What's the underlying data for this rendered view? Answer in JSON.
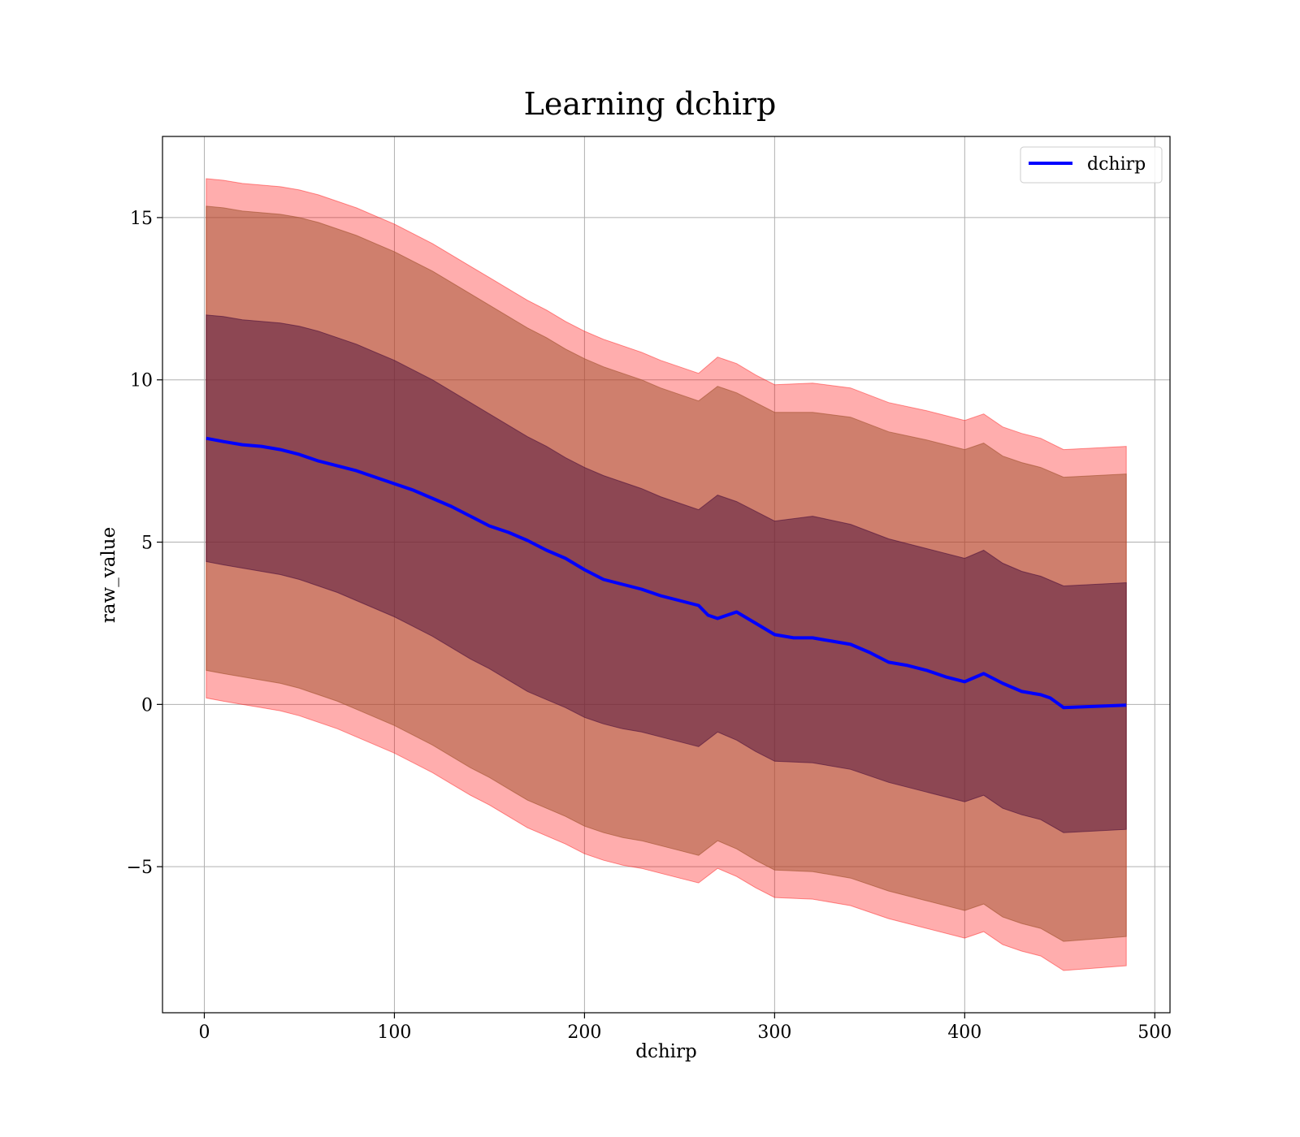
{
  "chart_data": {
    "type": "line",
    "title": "Learning dchirp",
    "xlabel": "dchirp",
    "ylabel": "raw_value",
    "xlim": [
      -22,
      508
    ],
    "ylim": [
      -9.5,
      17.5
    ],
    "xticks": [
      0,
      100,
      200,
      300,
      400,
      500
    ],
    "xtick_labels": [
      "0",
      "100",
      "200",
      "300",
      "400",
      "500"
    ],
    "yticks": [
      -5,
      0,
      5,
      10,
      15
    ],
    "ytick_labels": [
      "−5",
      "0",
      "5",
      "10",
      "15"
    ],
    "grid": true,
    "legend_position": "top-right",
    "colors": {
      "line": "#0000ff",
      "band_outer": "#ff0000",
      "band_middle": "#a0522d",
      "band_inner": "#4b0f3a",
      "grid": "#b0b0b0"
    },
    "series": [
      {
        "name": "dchirp",
        "x": [
          1,
          10,
          20,
          30,
          40,
          50,
          60,
          70,
          80,
          90,
          100,
          110,
          120,
          130,
          140,
          150,
          160,
          170,
          180,
          190,
          200,
          210,
          220,
          230,
          240,
          250,
          260,
          265,
          270,
          280,
          290,
          300,
          310,
          320,
          330,
          340,
          350,
          360,
          370,
          380,
          390,
          400,
          410,
          420,
          430,
          440,
          445,
          452,
          485
        ],
        "values": [
          8.2,
          8.1,
          8.0,
          7.95,
          7.85,
          7.7,
          7.5,
          7.35,
          7.2,
          7.0,
          6.8,
          6.6,
          6.35,
          6.1,
          5.8,
          5.5,
          5.3,
          5.05,
          4.75,
          4.5,
          4.15,
          3.85,
          3.7,
          3.55,
          3.35,
          3.2,
          3.05,
          2.75,
          2.65,
          2.85,
          2.5,
          2.15,
          2.05,
          2.05,
          1.95,
          1.85,
          1.6,
          1.3,
          1.2,
          1.05,
          0.85,
          0.7,
          0.95,
          0.65,
          0.4,
          0.3,
          0.2,
          -0.1,
          -0.02
        ]
      }
    ],
    "bands": [
      {
        "x": [
          1,
          10,
          20,
          30,
          40,
          50,
          60,
          70,
          80,
          90,
          100,
          110,
          120,
          130,
          140,
          150,
          160,
          170,
          180,
          190,
          200,
          210,
          220,
          230,
          240,
          250,
          260,
          270,
          280,
          290,
          300,
          320,
          340,
          360,
          380,
          400,
          410,
          420,
          430,
          440,
          452,
          485
        ],
        "upper": [
          16.2,
          16.15,
          16.05,
          16.0,
          15.95,
          15.85,
          15.7,
          15.5,
          15.3,
          15.05,
          14.8,
          14.5,
          14.2,
          13.85,
          13.5,
          13.15,
          12.8,
          12.45,
          12.15,
          11.8,
          11.5,
          11.25,
          11.05,
          10.85,
          10.6,
          10.4,
          10.2,
          10.7,
          10.5,
          10.15,
          9.85,
          9.9,
          9.75,
          9.3,
          9.05,
          8.75,
          8.95,
          8.55,
          8.35,
          8.2,
          7.85,
          7.95
        ],
        "lower": [
          0.2,
          0.1,
          0.0,
          -0.1,
          -0.2,
          -0.35,
          -0.55,
          -0.75,
          -1.0,
          -1.25,
          -1.5,
          -1.8,
          -2.1,
          -2.45,
          -2.8,
          -3.1,
          -3.45,
          -3.8,
          -4.05,
          -4.3,
          -4.6,
          -4.8,
          -4.95,
          -5.05,
          -5.2,
          -5.35,
          -5.5,
          -5.05,
          -5.3,
          -5.65,
          -5.95,
          -6.0,
          -6.2,
          -6.6,
          -6.9,
          -7.2,
          -7.0,
          -7.4,
          -7.6,
          -7.75,
          -8.2,
          -8.05
        ],
        "color_key": "band_outer",
        "opacity": 0.32
      },
      {
        "x": [
          1,
          10,
          20,
          30,
          40,
          50,
          60,
          70,
          80,
          90,
          100,
          110,
          120,
          130,
          140,
          150,
          160,
          170,
          180,
          190,
          200,
          210,
          220,
          230,
          240,
          250,
          260,
          270,
          280,
          290,
          300,
          320,
          340,
          360,
          380,
          400,
          410,
          420,
          430,
          440,
          452,
          485
        ],
        "upper": [
          15.35,
          15.3,
          15.2,
          15.15,
          15.1,
          15.0,
          14.85,
          14.65,
          14.45,
          14.2,
          13.95,
          13.65,
          13.35,
          13.0,
          12.65,
          12.3,
          11.95,
          11.6,
          11.3,
          10.95,
          10.65,
          10.4,
          10.2,
          10.0,
          9.75,
          9.55,
          9.35,
          9.8,
          9.6,
          9.3,
          9.0,
          9.0,
          8.85,
          8.4,
          8.15,
          7.85,
          8.05,
          7.65,
          7.45,
          7.3,
          7.0,
          7.1
        ],
        "lower": [
          1.05,
          0.95,
          0.85,
          0.75,
          0.65,
          0.5,
          0.3,
          0.1,
          -0.15,
          -0.4,
          -0.65,
          -0.95,
          -1.25,
          -1.6,
          -1.95,
          -2.25,
          -2.6,
          -2.95,
          -3.2,
          -3.45,
          -3.75,
          -3.95,
          -4.1,
          -4.2,
          -4.35,
          -4.5,
          -4.65,
          -4.2,
          -4.45,
          -4.8,
          -5.1,
          -5.15,
          -5.35,
          -5.75,
          -6.05,
          -6.35,
          -6.15,
          -6.55,
          -6.75,
          -6.9,
          -7.3,
          -7.15
        ],
        "color_key": "band_middle",
        "opacity": 0.5
      },
      {
        "x": [
          1,
          10,
          20,
          30,
          40,
          50,
          60,
          70,
          80,
          90,
          100,
          110,
          120,
          130,
          140,
          150,
          160,
          170,
          180,
          190,
          200,
          210,
          220,
          230,
          240,
          250,
          260,
          270,
          280,
          290,
          300,
          320,
          340,
          360,
          380,
          400,
          410,
          420,
          430,
          440,
          452,
          485
        ],
        "upper": [
          12.0,
          11.95,
          11.85,
          11.8,
          11.75,
          11.65,
          11.5,
          11.3,
          11.1,
          10.85,
          10.6,
          10.3,
          10.0,
          9.65,
          9.3,
          8.95,
          8.6,
          8.25,
          7.95,
          7.6,
          7.3,
          7.05,
          6.85,
          6.65,
          6.4,
          6.2,
          6.0,
          6.45,
          6.25,
          5.95,
          5.65,
          5.8,
          5.55,
          5.1,
          4.8,
          4.5,
          4.75,
          4.35,
          4.1,
          3.95,
          3.65,
          3.75
        ],
        "lower": [
          4.4,
          4.3,
          4.2,
          4.1,
          4.0,
          3.85,
          3.65,
          3.45,
          3.2,
          2.95,
          2.7,
          2.4,
          2.1,
          1.75,
          1.4,
          1.1,
          0.75,
          0.4,
          0.15,
          -0.1,
          -0.4,
          -0.6,
          -0.75,
          -0.85,
          -1.0,
          -1.15,
          -1.3,
          -0.85,
          -1.1,
          -1.45,
          -1.75,
          -1.8,
          -2.0,
          -2.4,
          -2.7,
          -3.0,
          -2.8,
          -3.2,
          -3.4,
          -3.55,
          -3.95,
          -3.85
        ],
        "color_key": "band_inner",
        "opacity": 0.5
      }
    ]
  }
}
